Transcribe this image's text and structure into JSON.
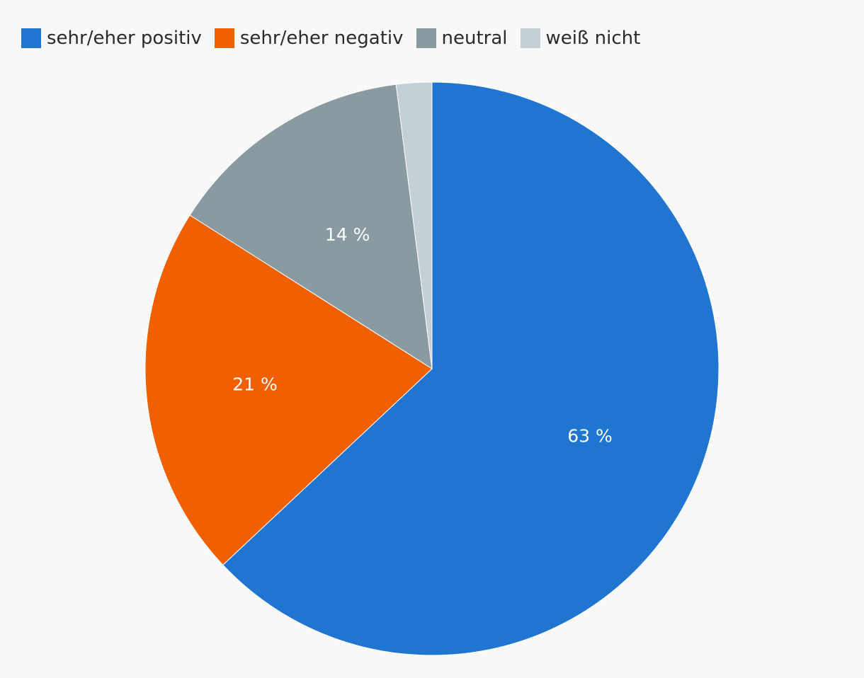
{
  "chart_data": {
    "type": "pie",
    "categories": [
      "sehr/eher positiv",
      "sehr/eher negativ",
      "neutral",
      "weiß nicht"
    ],
    "values": [
      63,
      21,
      14,
      2
    ],
    "labels": [
      "63 %",
      "21 %",
      "14 %",
      ""
    ],
    "colors": [
      "#1f75cf",
      "#f06000",
      "#8a9aa1",
      "#c5cfd6"
    ],
    "legend_position": "top-left",
    "start_angle": "12 o'clock",
    "direction": "clockwise"
  }
}
